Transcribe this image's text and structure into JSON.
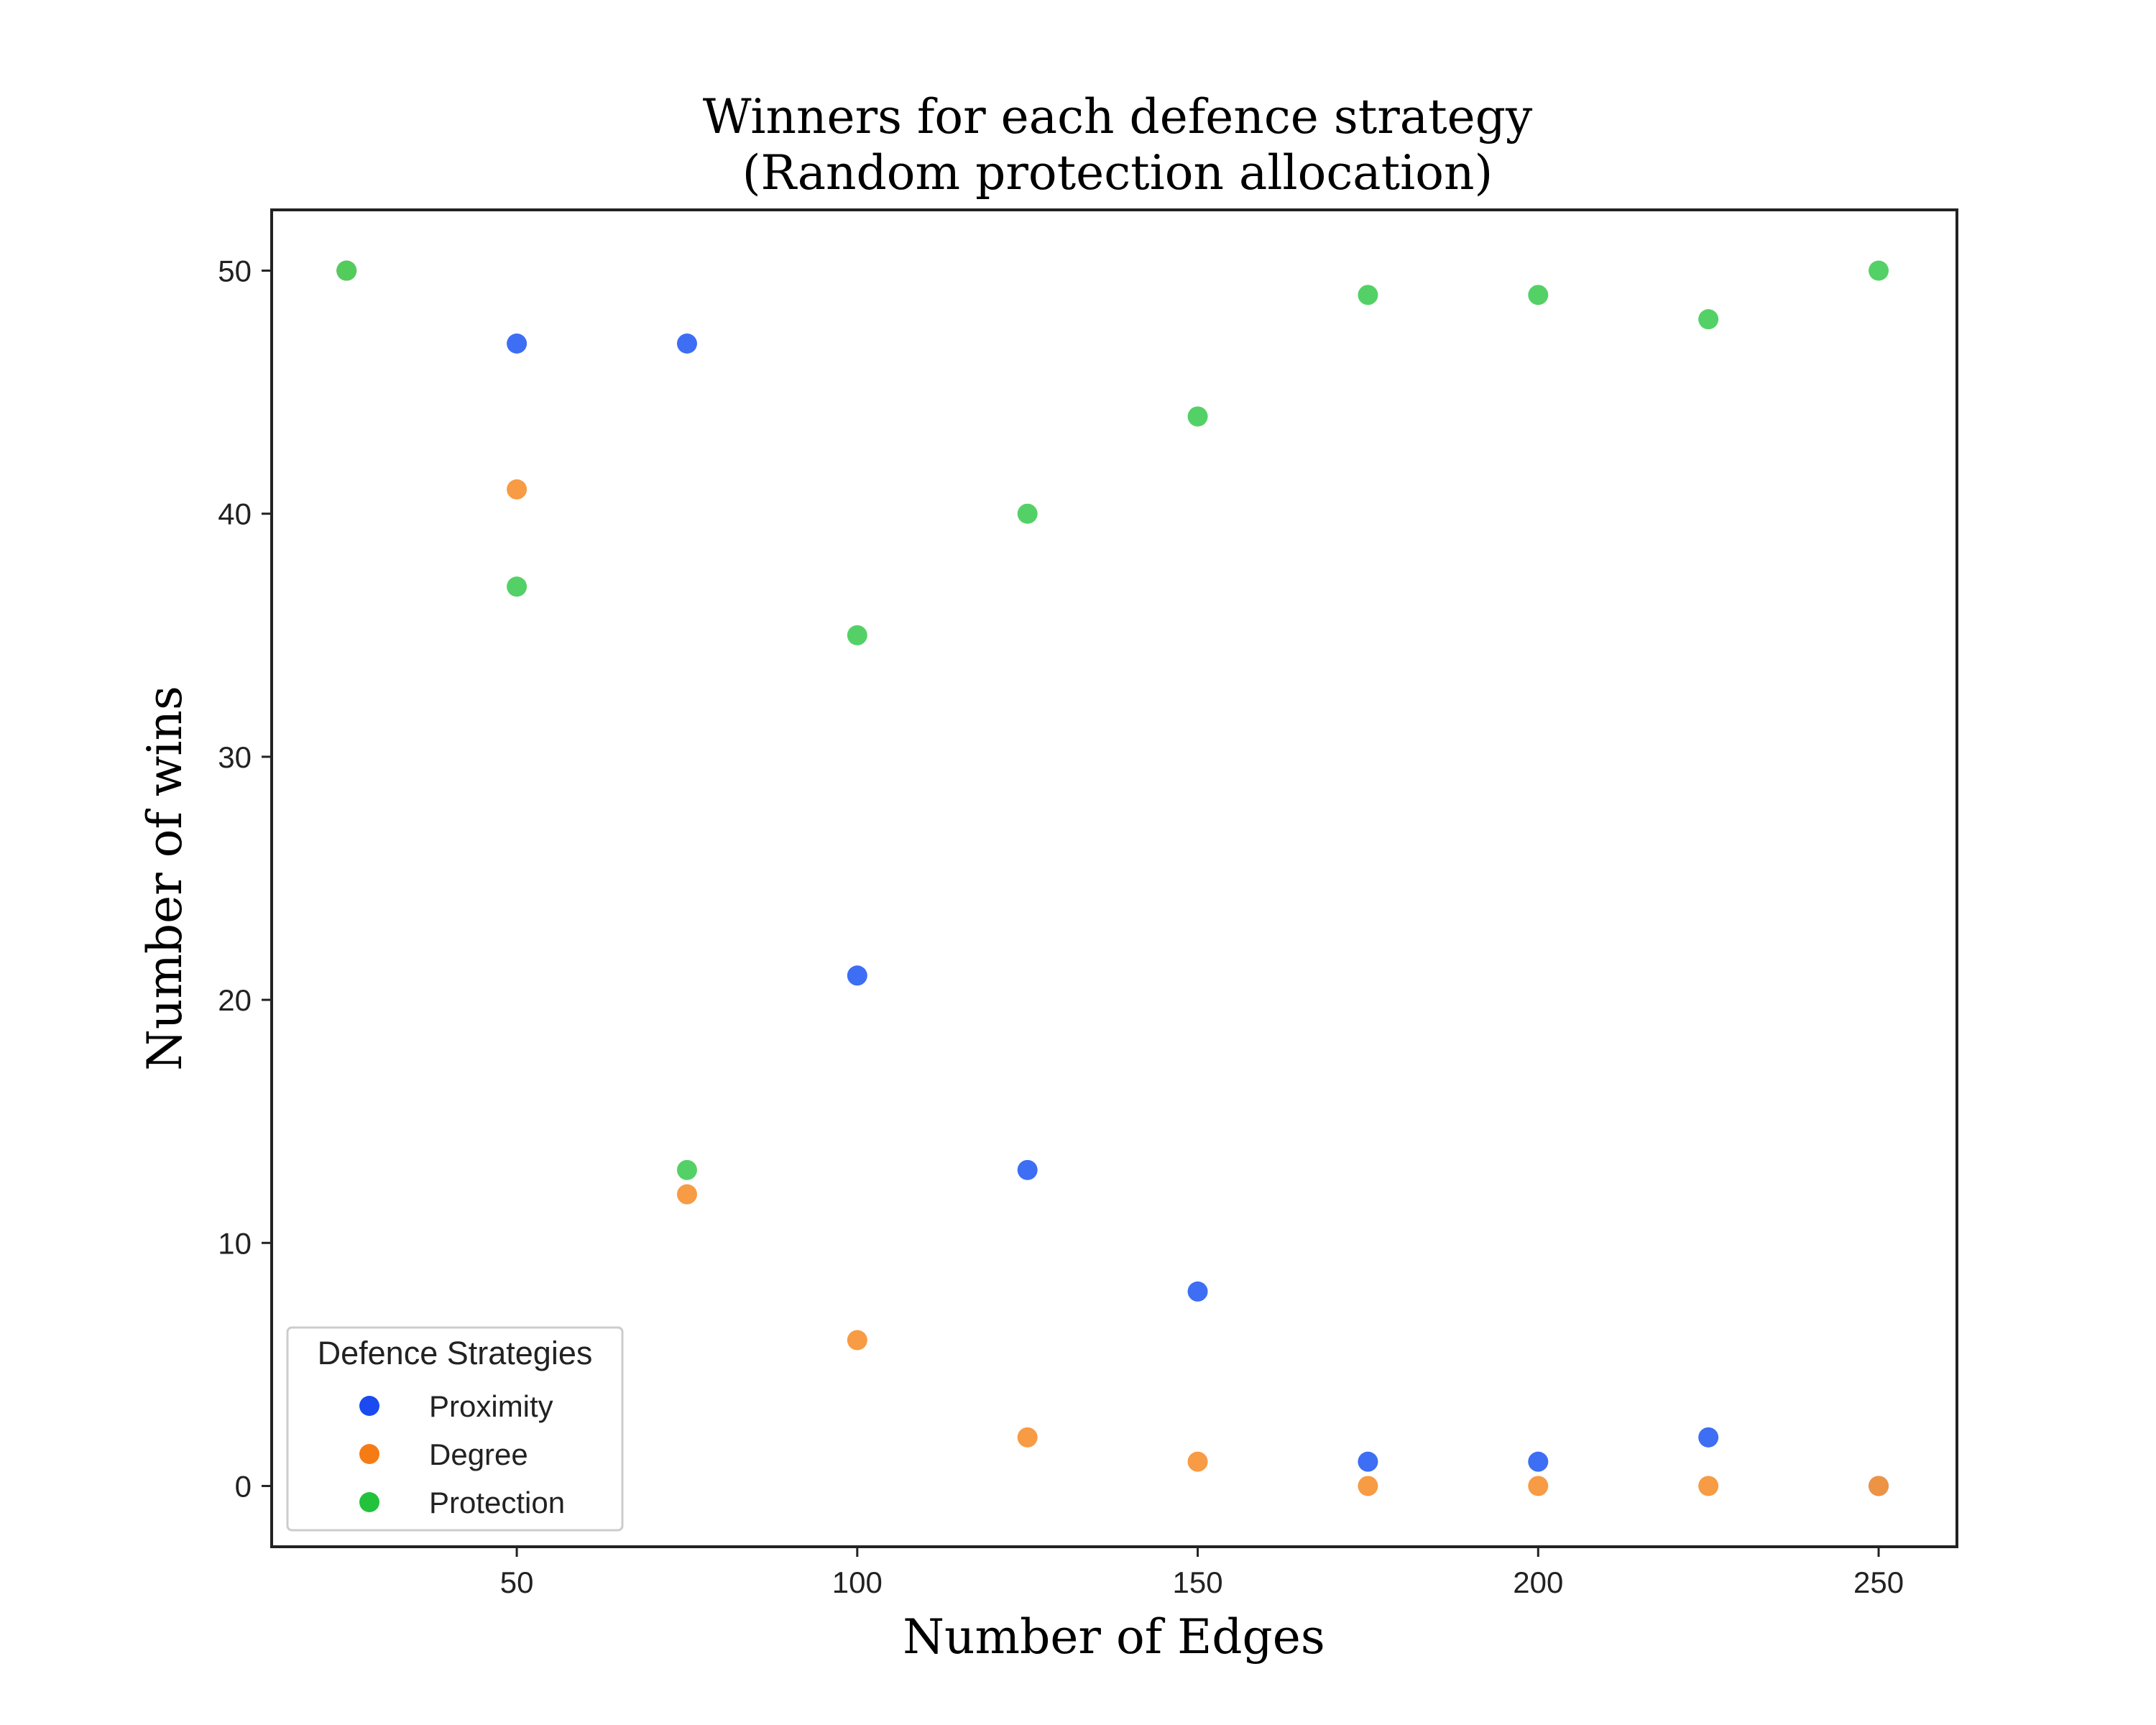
{
  "chart_data": {
    "type": "scatter",
    "title_line1": "Winners for each defence strategy",
    "title_line2": "(Random protection allocation)",
    "xlabel": "Number of Edges",
    "ylabel": "Number of wins",
    "xlim": [
      14,
      261.5
    ],
    "ylim": [
      -2.5,
      52.5
    ],
    "xticks": [
      50,
      100,
      150,
      200,
      250
    ],
    "yticks": [
      0,
      10,
      20,
      30,
      40,
      50
    ],
    "grid": false,
    "legend": {
      "title": "Defence Strategies",
      "location": "lower-left"
    },
    "series": [
      {
        "name": "Proximity",
        "color": "#1a4af0",
        "marker_color": "#3366f2",
        "x": [
          25,
          50,
          75,
          100,
          125,
          150,
          175,
          200,
          225,
          250
        ],
        "y": [
          50,
          47,
          47,
          21,
          13,
          8,
          1,
          1,
          2,
          0
        ]
      },
      {
        "name": "Degree",
        "color": "#f57c14",
        "marker_color": "#f7963a",
        "x": [
          25,
          50,
          75,
          100,
          125,
          150,
          175,
          200,
          225,
          250
        ],
        "y": [
          50,
          41,
          12,
          6,
          2,
          1,
          0,
          0,
          0,
          0
        ]
      },
      {
        "name": "Protection",
        "color": "#22c23c",
        "marker_color": "#4bcf5e",
        "x": [
          25,
          50,
          75,
          100,
          125,
          150,
          175,
          200,
          225,
          250
        ],
        "y": [
          50,
          37,
          13,
          35,
          40,
          44,
          49,
          49,
          48,
          50
        ]
      }
    ]
  }
}
